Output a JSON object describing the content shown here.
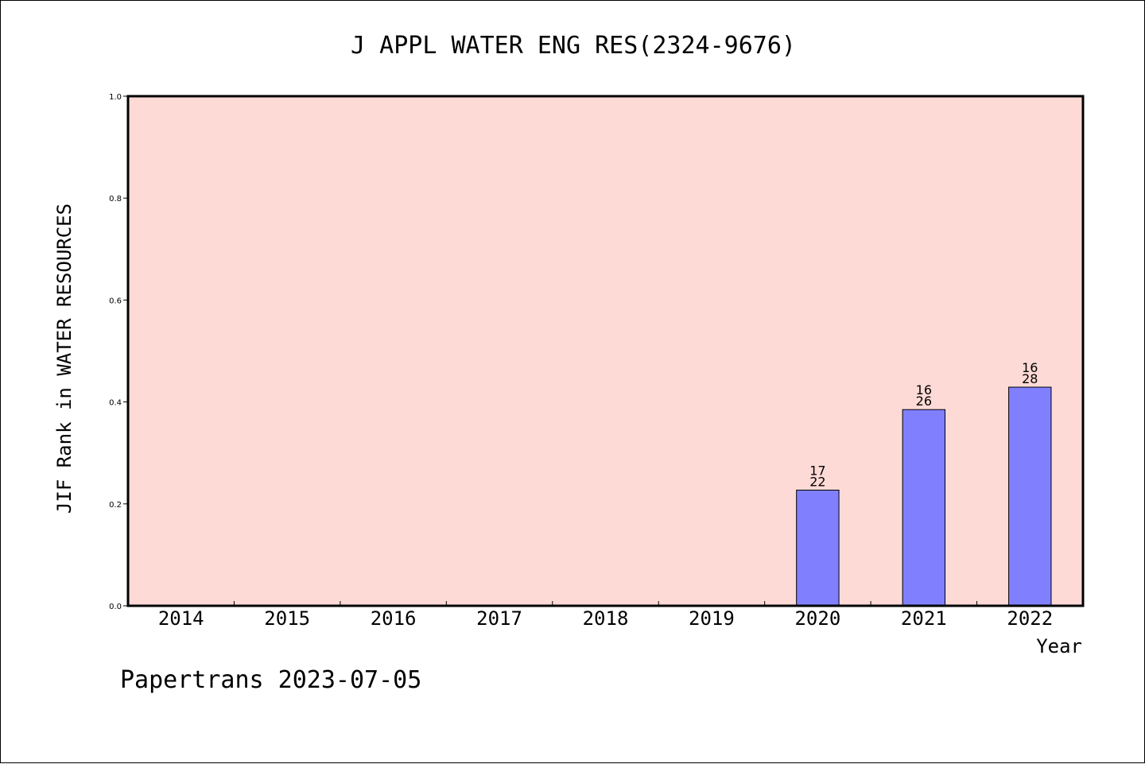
{
  "chart_data": {
    "type": "bar",
    "title": "J APPL WATER ENG RES(2324-9676)",
    "ylabel": "JIF Rank in WATER RESOURCES",
    "xlabel": "Year",
    "categories": [
      "2014",
      "2015",
      "2016",
      "2017",
      "2018",
      "2019",
      "2020",
      "2021",
      "2022"
    ],
    "values": [
      null,
      null,
      null,
      null,
      null,
      null,
      0.227,
      0.385,
      0.429
    ],
    "data_labels": [
      null,
      null,
      null,
      null,
      null,
      null,
      [
        "17",
        "22"
      ],
      [
        "16",
        "26"
      ],
      [
        "16",
        "28"
      ]
    ],
    "ylim": [
      0,
      1.0
    ],
    "yticks": [
      "0.0",
      "0.2",
      "0.4",
      "0.6",
      "0.8",
      "1.0"
    ],
    "grid": false,
    "legend": "none"
  },
  "colors": {
    "plot_background": "#fddad6",
    "bar_fill": "#8080ff",
    "bar_stroke": "#000000"
  },
  "footer": "Papertrans 2023-07-05"
}
